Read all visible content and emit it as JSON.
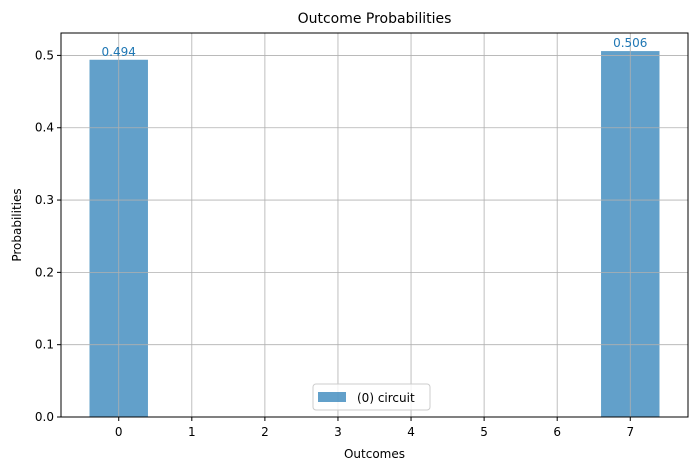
{
  "chart_data": {
    "type": "bar",
    "title": "Outcome Probabilities",
    "xlabel": "Outcomes",
    "ylabel": "Probabilities",
    "categories": [
      0,
      1,
      2,
      3,
      4,
      5,
      6,
      7
    ],
    "x_ticks": [
      "0",
      "1",
      "2",
      "3",
      "4",
      "5",
      "6",
      "7"
    ],
    "y_ticks": [
      "0.0",
      "0.1",
      "0.2",
      "0.3",
      "0.4",
      "0.5"
    ],
    "series": [
      {
        "name": "(0) circuit",
        "x": [
          0,
          7
        ],
        "values": [
          0.494,
          0.506
        ],
        "labels": [
          "0.494",
          "0.506"
        ],
        "color": "#1f77b4",
        "alpha": 0.7
      }
    ],
    "xlim": [
      -0.79,
      7.79
    ],
    "ylim": [
      0,
      0.531
    ],
    "bar_width": 0.8,
    "grid": true,
    "legend_position": "lower-center",
    "label_color": "#1f77b4"
  }
}
